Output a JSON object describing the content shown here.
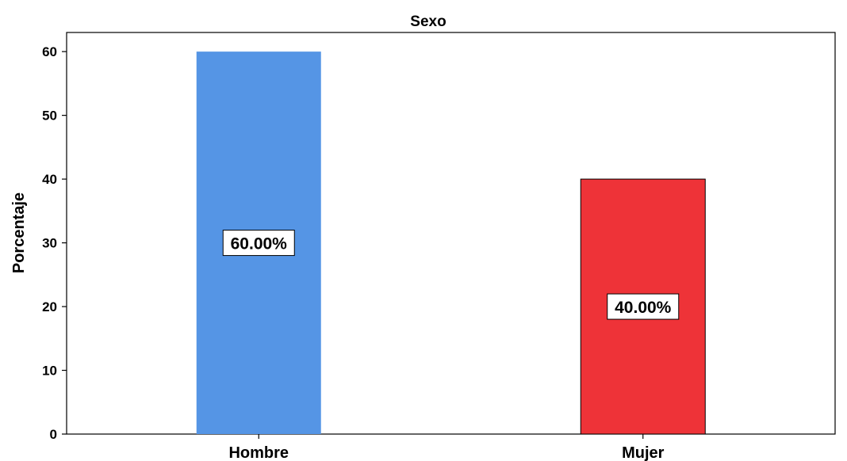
{
  "chart_data": {
    "type": "bar",
    "title": "Sexo",
    "xlabel": "",
    "ylabel": "Porcentaje",
    "categories": [
      "Hombre",
      "Mujer"
    ],
    "values": [
      60,
      40
    ],
    "data_labels": [
      "60.00%",
      "40.00%"
    ],
    "bar_colors": [
      "#5595e5",
      "#ee3338"
    ],
    "ylim": [
      0,
      63
    ],
    "yticks": [
      0,
      10,
      20,
      30,
      40,
      50,
      60
    ],
    "grid": false,
    "legend": "none"
  }
}
